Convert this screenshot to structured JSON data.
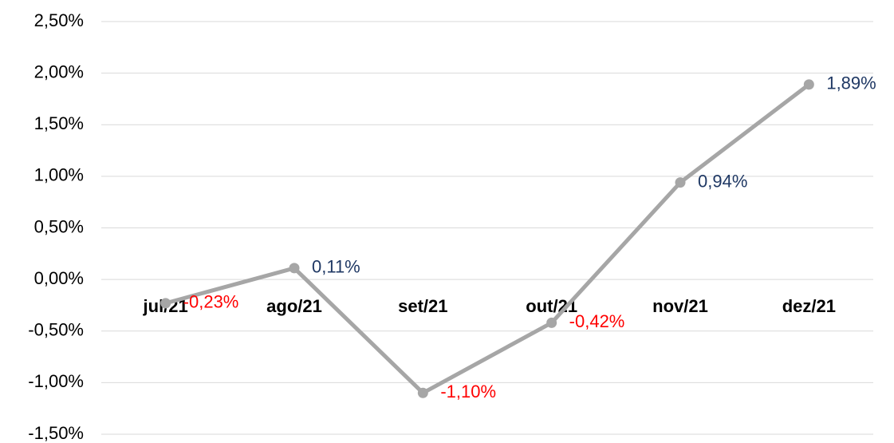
{
  "chart_data": {
    "type": "line",
    "categories": [
      "jul/21",
      "ago/21",
      "set/21",
      "out/21",
      "nov/21",
      "dez/21"
    ],
    "series": [
      {
        "color": "#a6a6a6",
        "values": [
          -0.23,
          0.11,
          -1.1,
          -0.42,
          0.94,
          1.89
        ],
        "value_labels": [
          "-0,23%",
          "0,11%",
          "-1,10%",
          "-0,42%",
          "0,94%",
          "1,89%"
        ]
      }
    ],
    "ylim": [
      -1.5,
      2.5
    ],
    "yticks": [
      {
        "value": -1.5,
        "label": "-1,50%"
      },
      {
        "value": -1.0,
        "label": "-1,00%"
      },
      {
        "value": -0.5,
        "label": "-0,50%"
      },
      {
        "value": 0,
        "label": "0,00%"
      },
      {
        "value": 0.5,
        "label": "0,50%"
      },
      {
        "value": 1.0,
        "label": "1,00%"
      },
      {
        "value": 1.5,
        "label": "1,50%"
      },
      {
        "value": 2.0,
        "label": "2,00%"
      },
      {
        "value": 2.5,
        "label": "2,50%"
      }
    ],
    "grid": true
  }
}
